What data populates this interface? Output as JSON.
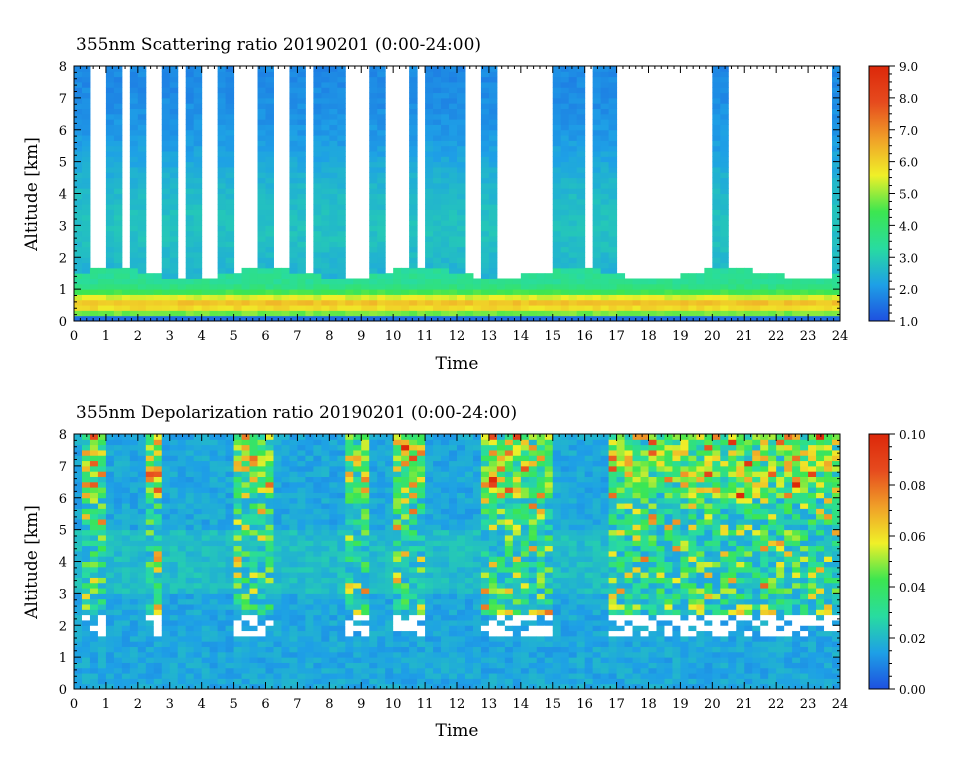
{
  "chart_data": [
    {
      "type": "heatmap",
      "title": "355nm Scattering ratio  20190201 (0:00-24:00)",
      "xlabel": "Time",
      "ylabel": "Altitude [km]",
      "xlim": [
        0,
        24
      ],
      "ylim": [
        0,
        8
      ],
      "xticks": [
        "0",
        "1",
        "2",
        "3",
        "4",
        "5",
        "6",
        "7",
        "8",
        "9",
        "10",
        "11",
        "12",
        "13",
        "14",
        "15",
        "16",
        "17",
        "18",
        "19",
        "20",
        "21",
        "22",
        "23",
        "24"
      ],
      "yticks": [
        "0",
        "1",
        "2",
        "3",
        "4",
        "5",
        "6",
        "7",
        "8"
      ],
      "colorbar": {
        "range": [
          1.0,
          9.0
        ],
        "ticks": [
          "1.0",
          "2.0",
          "3.0",
          "4.0",
          "5.0",
          "6.0",
          "7.0",
          "8.0",
          "9.0"
        ],
        "colors": [
          "#1e50e0",
          "#1ea0e6",
          "#28dca0",
          "#3ce650",
          "#f0f028",
          "#f0a028",
          "#e64b1e",
          "#dc280a"
        ]
      },
      "features": {
        "boundary_layer_top_km": 1.5,
        "background_value": "above 9.0 (white)",
        "cloud_columns_hours": [
          0.3,
          1.2,
          2.0,
          3.0,
          3.8,
          4.7,
          6.0,
          7.0,
          7.7,
          8.0,
          8.3,
          9.5,
          10.6,
          11.3,
          11.7,
          12.1,
          13.0,
          15.3,
          15.7,
          16.4,
          16.7,
          20.2,
          23.9
        ]
      }
    },
    {
      "type": "heatmap",
      "title": "355nm Depolarization ratio  20190201 (0:00-24:00)",
      "xlabel": "Time",
      "ylabel": "Altitude [km]",
      "xlim": [
        0,
        24
      ],
      "ylim": [
        0,
        8
      ],
      "xticks": [
        "0",
        "1",
        "2",
        "3",
        "4",
        "5",
        "6",
        "7",
        "8",
        "9",
        "10",
        "11",
        "12",
        "13",
        "14",
        "15",
        "16",
        "17",
        "18",
        "19",
        "20",
        "21",
        "22",
        "23",
        "24"
      ],
      "yticks": [
        "0",
        "1",
        "2",
        "3",
        "4",
        "5",
        "6",
        "7",
        "8"
      ],
      "colorbar": {
        "range": [
          0.0,
          0.1
        ],
        "ticks": [
          "0.00",
          "0.02",
          "0.04",
          "0.06",
          "0.08",
          "0.10"
        ],
        "colors": [
          "#1e50e0",
          "#1ea0e6",
          "#28dca0",
          "#3ce650",
          "#f0f028",
          "#f0a028",
          "#e64b1e",
          "#dc280a"
        ]
      },
      "features": {
        "cloud_base_km": 2.0,
        "noisy_intervals_hours": [
          [
            0.3,
            0.9
          ],
          [
            2.3,
            2.8
          ],
          [
            5.0,
            6.3
          ],
          [
            8.5,
            9.3
          ],
          [
            10.0,
            11.0
          ],
          [
            12.8,
            15.0
          ],
          [
            16.8,
            24.0
          ]
        ]
      }
    }
  ]
}
